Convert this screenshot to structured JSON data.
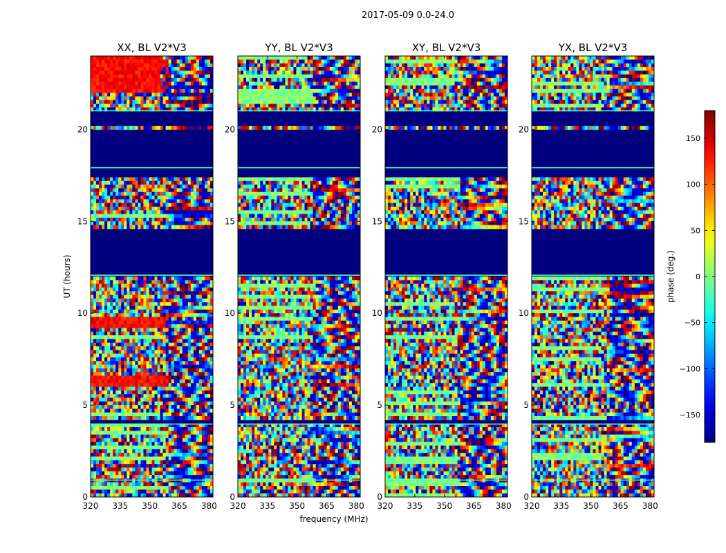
{
  "figure": {
    "suptitle": "2017-05-09 0.0-24.0",
    "ylabel": "UT (hours)",
    "xlabel": "frequency (MHz)"
  },
  "chart_data": {
    "type": "heatmap",
    "title": "2017-05-09 0.0-24.0",
    "xlabel": "frequency (MHz)",
    "ylabel": "UT (hours)",
    "xlim": [
      320,
      382
    ],
    "ylim": [
      0,
      24
    ],
    "x_ticks": [
      "320",
      "335",
      "350",
      "365",
      "380"
    ],
    "x_tick_values": [
      320,
      335,
      350,
      365,
      380
    ],
    "y_ticks": [
      "0",
      "5",
      "10",
      "15",
      "20"
    ],
    "y_tick_values": [
      0,
      5,
      10,
      15,
      20
    ],
    "colormap": "jet",
    "colorbar": {
      "label": "phase (deg.)",
      "range": [
        -180,
        180
      ],
      "ticks": [
        "−150",
        "−100",
        "−50",
        "0",
        "50",
        "100",
        "150"
      ],
      "tick_values": [
        -150,
        -100,
        -50,
        0,
        50,
        100,
        150
      ]
    },
    "no_data_phase": -180,
    "blank_time_ranges_hours": [
      [
        12.1,
        14.5
      ],
      [
        17.5,
        20.0
      ],
      [
        20.3,
        21.0
      ],
      [
        4.05,
        4.3
      ]
    ],
    "panels": [
      {
        "title": "XX, BL V2*V3",
        "pol": "XX"
      },
      {
        "title": "YY, BL V2*V3",
        "pol": "YY"
      },
      {
        "title": "XY, BL V2*V3",
        "pol": "XY"
      },
      {
        "title": "YX, BL V2*V3",
        "pol": "YX"
      }
    ]
  },
  "colors": {
    "axis": "#000000",
    "no_data": "#00007f"
  }
}
